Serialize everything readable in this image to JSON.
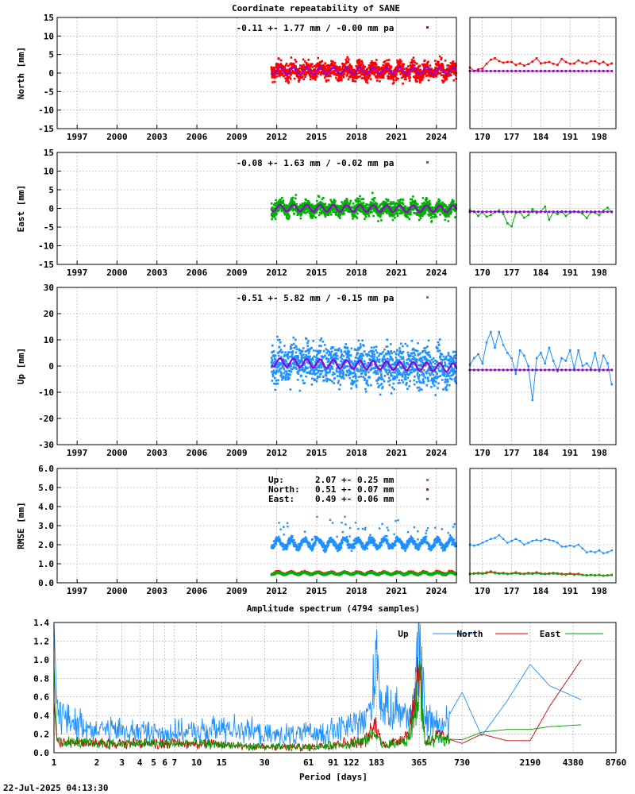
{
  "figure": {
    "title": "Coordinate repeatability of SANE",
    "timestamp": "22-Jul-2025 04:13:30",
    "spectrum_title": "Amplitude spectrum (4794 samples)"
  },
  "colors": {
    "north": "#ff0000",
    "east": "#00b000",
    "up": "#1e90ff",
    "model": "#9400d3",
    "axis": "#000000",
    "grid": "#a0a0a0"
  },
  "chart_data": [
    {
      "id": "north",
      "type": "scatter",
      "ylabel": "North [mm]",
      "ylim": [
        -15,
        15
      ],
      "yticks": [
        -15,
        -10,
        -5,
        0,
        5,
        10,
        15
      ],
      "xlim": [
        1995.5,
        2025.5
      ],
      "xticks": [
        "1997",
        "2000",
        "2003",
        "2006",
        "2009",
        "2012",
        "2015",
        "2018",
        "2021",
        "2024"
      ],
      "xtick_values": [
        1997,
        2000,
        2003,
        2006,
        2009,
        2012,
        2015,
        2018,
        2021,
        2024
      ],
      "annotation": "-0.11 +- 1.77 mm / -0.00 mm pa",
      "color": "#ff0000",
      "data_start": 2011.6,
      "data_end": 2025.5,
      "offset": 0.6,
      "trend_pa": 0.0,
      "scatter_sigma": 1.77,
      "seasonal_amplitude": 0.9,
      "grid": true,
      "zoom": {
        "xlim": [
          167,
          202
        ],
        "xticks": [
          "170",
          "177",
          "184",
          "191",
          "198"
        ],
        "xtick_values": [
          170,
          177,
          184,
          191,
          198
        ],
        "series": [
          1.5,
          0.6,
          1.0,
          1.2,
          2.5,
          3.6,
          4.0,
          3.2,
          2.8,
          3.0,
          3.0,
          2.2,
          2.6,
          2.0,
          2.4,
          3.1,
          4.0,
          2.6,
          2.8,
          3.0,
          2.5,
          2.2,
          3.8,
          3.0,
          2.5,
          2.6,
          3.4,
          2.8,
          2.6,
          3.2,
          3.2,
          2.5,
          3.0,
          2.2,
          2.6
        ],
        "model": 0.55
      }
    },
    {
      "id": "east",
      "type": "scatter",
      "ylabel": "East [mm]",
      "ylim": [
        -15,
        15
      ],
      "yticks": [
        -15,
        -10,
        -5,
        0,
        5,
        10,
        15
      ],
      "xlim": [
        1995.5,
        2025.5
      ],
      "xticks": [
        "1997",
        "2000",
        "2003",
        "2006",
        "2009",
        "2012",
        "2015",
        "2018",
        "2021",
        "2024"
      ],
      "xtick_values": [
        1997,
        2000,
        2003,
        2006,
        2009,
        2012,
        2015,
        2018,
        2021,
        2024
      ],
      "annotation": "-0.08 +- 1.63 mm / -0.02 mm pa",
      "color": "#00b000",
      "data_start": 2011.6,
      "data_end": 2025.5,
      "offset": 0.0,
      "trend_pa": -0.02,
      "scatter_sigma": 1.63,
      "seasonal_amplitude": 0.9,
      "grid": true,
      "zoom": {
        "xlim": [
          167,
          202
        ],
        "xticks": [
          "170",
          "177",
          "184",
          "191",
          "198"
        ],
        "xtick_values": [
          170,
          177,
          184,
          191,
          198
        ],
        "series": [
          -0.5,
          -0.8,
          -2.0,
          -1.0,
          -2.2,
          -1.8,
          -1.0,
          -0.5,
          -1.5,
          -4.0,
          -4.8,
          -1.2,
          -1.0,
          -2.5,
          -1.8,
          -0.2,
          -1.2,
          -0.8,
          0.5,
          -3.0,
          -1.0,
          -1.5,
          -0.8,
          -2.0,
          -1.2,
          -0.8,
          -1.0,
          -1.4,
          -2.6,
          -1.0,
          -1.2,
          -1.8,
          -0.6,
          0.2,
          -1.0
        ],
        "model": -0.9
      }
    },
    {
      "id": "up",
      "type": "scatter",
      "ylabel": "Up [mm]",
      "ylim": [
        -30,
        30
      ],
      "yticks": [
        -30,
        -20,
        -10,
        0,
        10,
        20,
        30
      ],
      "xlim": [
        1995.5,
        2025.5
      ],
      "xticks": [
        "1997",
        "2000",
        "2003",
        "2006",
        "2009",
        "2012",
        "2015",
        "2018",
        "2021",
        "2024"
      ],
      "xtick_values": [
        1997,
        2000,
        2003,
        2006,
        2009,
        2012,
        2015,
        2018,
        2021,
        2024
      ],
      "annotation": "-0.51 +- 5.82 mm / -0.15 mm pa",
      "color": "#1e90ff",
      "data_start": 2011.6,
      "data_end": 2025.5,
      "offset": 0.5,
      "trend_pa": -0.15,
      "scatter_sigma": 5.82,
      "seasonal_amplitude": 1.6,
      "grid": true,
      "zoom": {
        "xlim": [
          167,
          202
        ],
        "xticks": [
          "170",
          "177",
          "184",
          "191",
          "198"
        ],
        "xtick_values": [
          170,
          177,
          184,
          191,
          198
        ],
        "series": [
          0.5,
          3.0,
          4.5,
          1.0,
          9.0,
          13.0,
          7.0,
          13.0,
          8.0,
          5.0,
          3.0,
          -3.0,
          6.0,
          4.0,
          0.0,
          -13.0,
          3.0,
          5.0,
          1.0,
          7.0,
          2.0,
          -2.0,
          3.0,
          2.0,
          6.0,
          -1.0,
          6.0,
          0.0,
          1.0,
          -1.0,
          5.0,
          -2.0,
          4.0,
          1.0,
          -7.0
        ],
        "model": -1.5
      }
    },
    {
      "id": "rmse",
      "type": "scatter",
      "ylabel": "RMSE [mm]",
      "ylim": [
        0,
        6
      ],
      "yticks": [
        "0.0",
        "1.0",
        "2.0",
        "3.0",
        "4.0",
        "5.0",
        "6.0"
      ],
      "ytick_values": [
        0,
        1,
        2,
        3,
        4,
        5,
        6
      ],
      "xlim": [
        1995.5,
        2025.5
      ],
      "xticks": [
        "1997",
        "2000",
        "2003",
        "2006",
        "2009",
        "2012",
        "2015",
        "2018",
        "2021",
        "2024"
      ],
      "xtick_values": [
        1997,
        2000,
        2003,
        2006,
        2009,
        2012,
        2015,
        2018,
        2021,
        2024
      ],
      "data_start": 2011.6,
      "data_end": 2025.5,
      "grid": true,
      "legend": [
        {
          "label": "Up:",
          "value": "2.07 +- 0.25 mm",
          "color": "#1e90ff",
          "mean": 2.07,
          "sd": 0.25
        },
        {
          "label": "North:",
          "value": "0.51 +- 0.07 mm",
          "color": "#ff0000",
          "mean": 0.51,
          "sd": 0.07
        },
        {
          "label": "East:",
          "value": "0.49 +- 0.06 mm",
          "color": "#00b000",
          "mean": 0.49,
          "sd": 0.06
        }
      ],
      "zoom": {
        "xlim": [
          167,
          202
        ],
        "xticks": [
          "170",
          "177",
          "184",
          "191",
          "198"
        ],
        "xtick_values": [
          170,
          177,
          184,
          191,
          198
        ],
        "up": [
          2.0,
          1.95,
          2.0,
          2.1,
          2.2,
          2.3,
          2.35,
          2.5,
          2.3,
          2.1,
          2.2,
          2.3,
          2.2,
          2.0,
          2.1,
          2.2,
          2.25,
          2.2,
          2.3,
          2.25,
          2.2,
          2.1,
          1.9,
          1.9,
          1.95,
          1.9,
          2.0,
          1.8,
          1.6,
          1.65,
          1.6,
          1.7,
          1.55,
          1.6,
          1.7
        ],
        "north": [
          0.48,
          0.5,
          0.52,
          0.5,
          0.55,
          0.6,
          0.55,
          0.5,
          0.52,
          0.48,
          0.5,
          0.55,
          0.5,
          0.48,
          0.52,
          0.5,
          0.55,
          0.5,
          0.48,
          0.5,
          0.52,
          0.5,
          0.48,
          0.45,
          0.5,
          0.45,
          0.48,
          0.42,
          0.4,
          0.42,
          0.4,
          0.42,
          0.38,
          0.4,
          0.42
        ],
        "east": [
          0.45,
          0.47,
          0.48,
          0.46,
          0.5,
          0.55,
          0.5,
          0.47,
          0.48,
          0.45,
          0.47,
          0.5,
          0.46,
          0.45,
          0.48,
          0.46,
          0.5,
          0.46,
          0.45,
          0.46,
          0.48,
          0.46,
          0.44,
          0.42,
          0.46,
          0.42,
          0.44,
          0.4,
          0.38,
          0.4,
          0.38,
          0.4,
          0.36,
          0.38,
          0.4
        ]
      }
    },
    {
      "id": "spectrum",
      "type": "line",
      "title": "Amplitude spectrum (4794 samples)",
      "xlabel": "Period [days]",
      "xscale": "log",
      "xlim": [
        1,
        8760
      ],
      "ylim": [
        0,
        1.4
      ],
      "yticks": [
        "0.0",
        "0.2",
        "0.4",
        "0.6",
        "0.8",
        "1.0",
        "1.2",
        "1.4"
      ],
      "ytick_values": [
        0,
        0.2,
        0.4,
        0.6,
        0.8,
        1.0,
        1.2,
        1.4
      ],
      "xticks": [
        "1",
        "2",
        "3",
        "4",
        "5",
        "6",
        "7",
        "10",
        "15",
        "30",
        "61",
        "91",
        "122",
        "183",
        "365",
        "730",
        "2190",
        "4380",
        "8760"
      ],
      "xtick_values": [
        1,
        2,
        3,
        4,
        5,
        6,
        7,
        10,
        15,
        30,
        61,
        91,
        122,
        183,
        365,
        730,
        2190,
        4380,
        8760
      ],
      "legend_position": "top-right",
      "grid": true,
      "series": [
        {
          "name": "Up",
          "color": "#1e90ff",
          "x": [
            1.0,
            1.05,
            1.1,
            1.2,
            2,
            5,
            10,
            20,
            30,
            60,
            100,
            150,
            170,
            183,
            200,
            250,
            300,
            340,
            365,
            400,
            500,
            600,
            730,
            1000,
            1500,
            2190,
            3000,
            5000
          ],
          "y": [
            1.4,
            0.5,
            0.45,
            0.35,
            0.25,
            0.22,
            0.22,
            0.28,
            0.18,
            0.2,
            0.25,
            0.35,
            0.5,
            1.22,
            0.45,
            0.5,
            0.38,
            0.6,
            1.25,
            0.4,
            0.28,
            0.42,
            0.65,
            0.18,
            0.55,
            0.95,
            0.72,
            0.57
          ],
          "noise": 0.12
        },
        {
          "name": "North",
          "color": "#cc0000",
          "x": [
            1.0,
            1.05,
            2,
            10,
            30,
            60,
            100,
            150,
            183,
            200,
            250,
            300,
            340,
            365,
            400,
            500,
            730,
            1000,
            1500,
            2190,
            3000,
            5000
          ],
          "y": [
            0.55,
            0.12,
            0.1,
            0.1,
            0.06,
            0.06,
            0.1,
            0.12,
            0.3,
            0.08,
            0.12,
            0.2,
            0.5,
            1.02,
            0.12,
            0.18,
            0.1,
            0.2,
            0.13,
            0.13,
            0.5,
            1.0
          ],
          "noise": 0.05
        },
        {
          "name": "East",
          "color": "#00a000",
          "x": [
            1.0,
            1.05,
            2,
            10,
            30,
            60,
            100,
            150,
            183,
            200,
            250,
            300,
            340,
            365,
            400,
            500,
            730,
            1000,
            1500,
            2190,
            3000,
            5000
          ],
          "y": [
            0.95,
            0.12,
            0.1,
            0.1,
            0.06,
            0.06,
            0.08,
            0.12,
            0.22,
            0.08,
            0.1,
            0.12,
            0.4,
            0.85,
            0.1,
            0.15,
            0.14,
            0.22,
            0.25,
            0.25,
            0.28,
            0.3
          ],
          "noise": 0.04
        }
      ]
    }
  ]
}
